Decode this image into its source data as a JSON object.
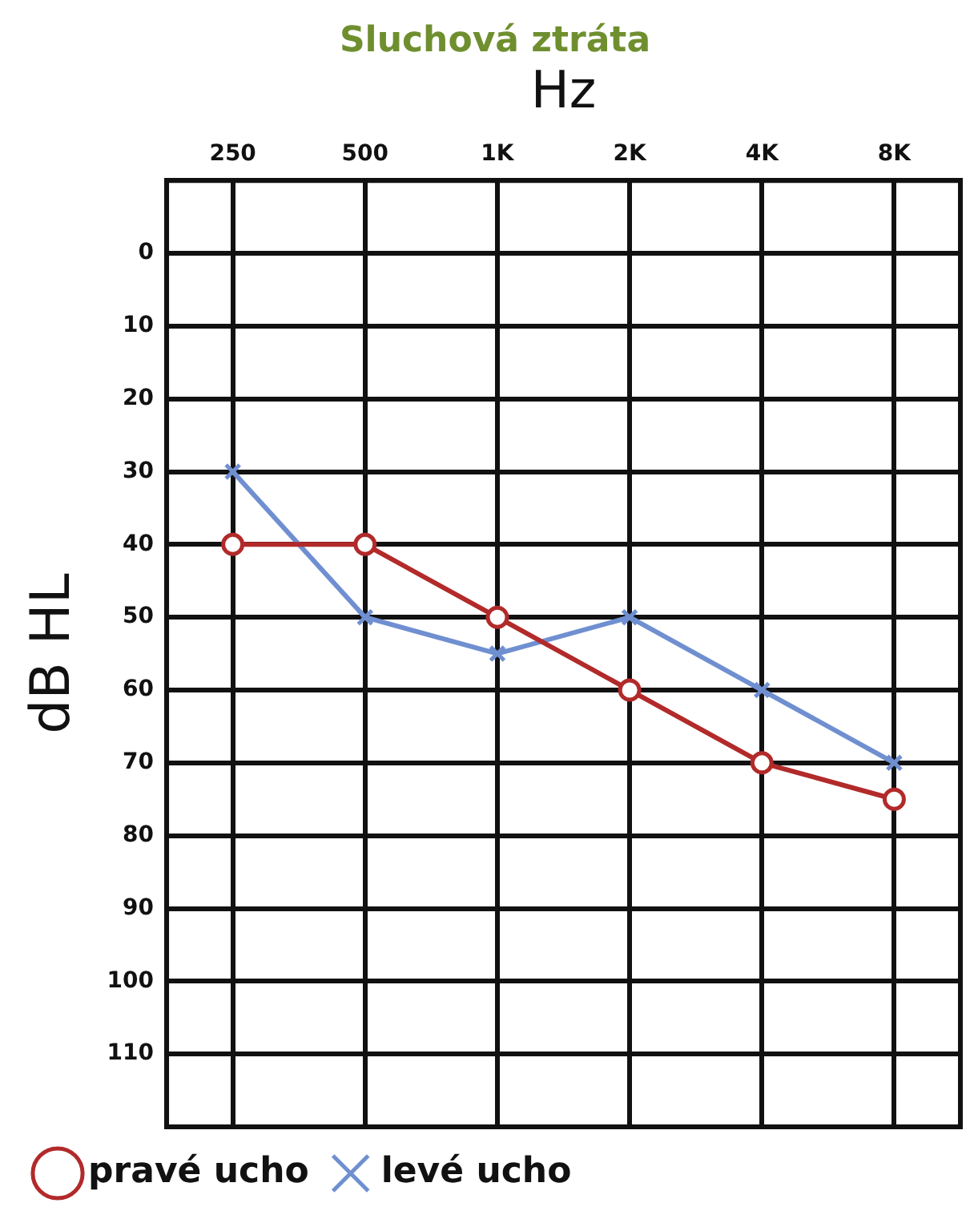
{
  "chart_data": {
    "type": "line",
    "title": "Sluchová ztráta",
    "xlabel": "Hz",
    "ylabel": "dB HL",
    "categories": [
      "250",
      "500",
      "1K",
      "2K",
      "4K",
      "8K"
    ],
    "series": [
      {
        "name": "pravé ucho",
        "color": "#b22a2a",
        "marker": "circle",
        "values": [
          40,
          40,
          50,
          60,
          70,
          75
        ]
      },
      {
        "name": "levé ucho",
        "color": "#6f8fd0",
        "marker": "cross",
        "values": [
          30,
          50,
          55,
          50,
          60,
          70
        ]
      }
    ],
    "ylim": [
      120,
      -10
    ],
    "yticks": [
      0,
      10,
      20,
      30,
      40,
      50,
      60,
      70,
      80,
      90,
      100,
      110
    ],
    "grid": true,
    "legend": "bottom",
    "line_style": "solid"
  }
}
